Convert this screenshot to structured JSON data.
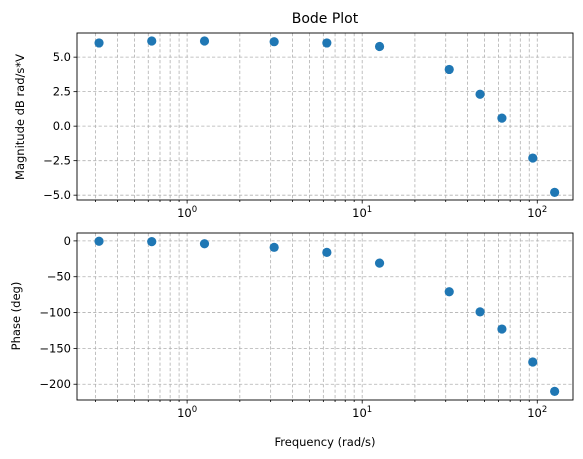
{
  "chart_data": [
    {
      "type": "scatter",
      "title": "Bode Plot",
      "xlabel": "",
      "ylabel": "Magnitude dB rad/s*V",
      "xscale": "log",
      "xlim": [
        0.235,
        160
      ],
      "ylim": [
        -5.35,
        6.75
      ],
      "grid": "both (major and minor), dashed",
      "x_ticks": [
        {
          "value": 1,
          "base": "10",
          "exp": "0"
        },
        {
          "value": 10,
          "base": "10",
          "exp": "1"
        },
        {
          "value": 100,
          "base": "10",
          "exp": "2"
        }
      ],
      "y_ticks": [
        {
          "value": 5.0,
          "label": "5.0"
        },
        {
          "value": 2.5,
          "label": "2.5"
        },
        {
          "value": 0.0,
          "label": "0.0"
        },
        {
          "value": -2.5,
          "label": "−2.5"
        },
        {
          "value": -5.0,
          "label": "−5.0"
        }
      ],
      "x": [
        0.314,
        0.628,
        1.257,
        3.142,
        6.283,
        12.566,
        31.416,
        47.124,
        62.832,
        94.248,
        125.664
      ],
      "y": [
        6.03,
        6.17,
        6.17,
        6.12,
        6.03,
        5.77,
        4.11,
        2.31,
        0.58,
        -2.31,
        -4.8
      ],
      "color": "#1f77b4"
    },
    {
      "type": "scatter",
      "title": "",
      "xlabel": "Frequency (rad/s)",
      "ylabel": "Phase (deg)",
      "xscale": "log",
      "xlim": [
        0.235,
        160
      ],
      "ylim": [
        -222,
        11
      ],
      "grid": "both (major and minor), dashed",
      "x_ticks": [
        {
          "value": 1,
          "base": "10",
          "exp": "0"
        },
        {
          "value": 10,
          "base": "10",
          "exp": "1"
        },
        {
          "value": 100,
          "base": "10",
          "exp": "2"
        }
      ],
      "y_ticks": [
        {
          "value": 0,
          "label": "0"
        },
        {
          "value": -50,
          "label": "−50"
        },
        {
          "value": -100,
          "label": "−100"
        },
        {
          "value": -150,
          "label": "−150"
        },
        {
          "value": -200,
          "label": "−200"
        }
      ],
      "x": [
        0.314,
        0.628,
        1.257,
        3.142,
        6.283,
        12.566,
        31.416,
        47.124,
        62.832,
        94.248,
        125.664
      ],
      "y": [
        -0.5,
        -1.0,
        -4.0,
        -9.0,
        -16.0,
        -31.0,
        -71.0,
        -99.0,
        -123.0,
        -169.0,
        -210.0
      ],
      "color": "#1f77b4"
    }
  ]
}
